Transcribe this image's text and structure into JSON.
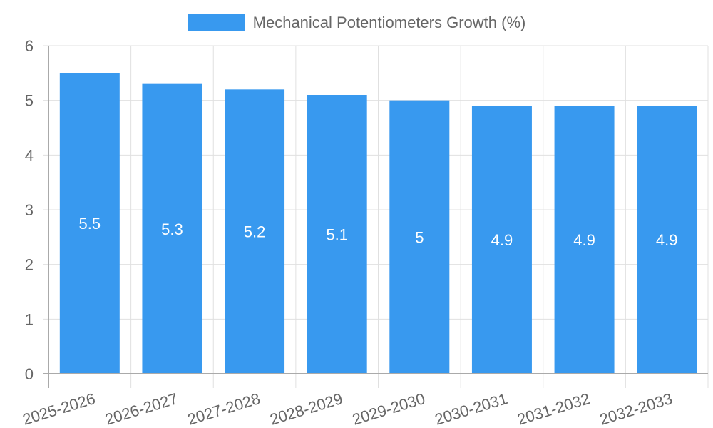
{
  "chart_data": {
    "type": "bar",
    "title": "",
    "categories": [
      "2025-2026",
      "2026-2027",
      "2027-2028",
      "2028-2029",
      "2029-2030",
      "2030-2031",
      "2031-2032",
      "2032-2033"
    ],
    "series": [
      {
        "name": "Mechanical Potentiometers Growth (%)",
        "values": [
          5.5,
          5.3,
          5.2,
          5.1,
          5,
          4.9,
          4.9,
          4.9
        ],
        "color": "#3899ef"
      }
    ],
    "xlabel": "",
    "ylabel": "",
    "ylim": [
      0,
      6
    ],
    "yticks": [
      0,
      1,
      2,
      3,
      4,
      5,
      6
    ],
    "grid": true,
    "legend_position": "top",
    "data_labels": [
      "5.5",
      "5.3",
      "5.2",
      "5.1",
      "5",
      "4.9",
      "4.9",
      "4.9"
    ]
  },
  "legend": {
    "label": "Mechanical Potentiometers Growth (%)",
    "color": "#3899ef"
  },
  "colors": {
    "bar": "#3899ef",
    "grid": "#e0e0e0",
    "axis": "#aaaaaa",
    "tick_text": "#666666",
    "data_label": "#ffffff"
  }
}
